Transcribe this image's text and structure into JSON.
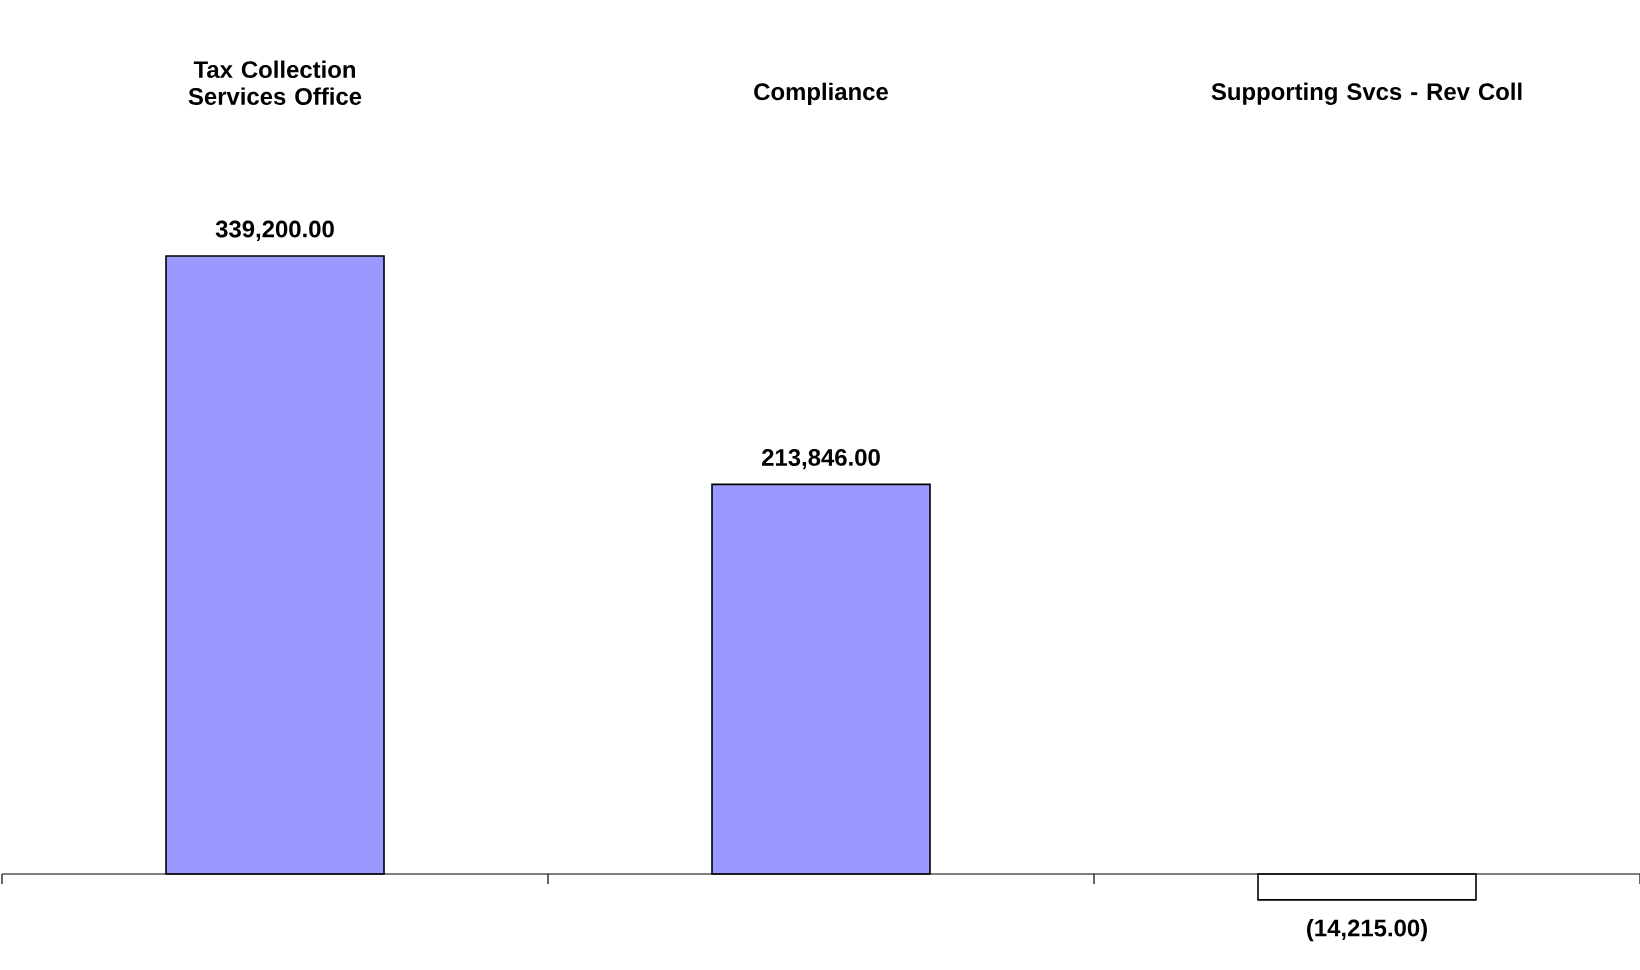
{
  "chart_data": {
    "type": "bar",
    "categories": [
      "Tax Collection Services Office",
      "Compliance",
      "Supporting Svcs - Rev Coll"
    ],
    "values": [
      339200,
      213846,
      -14215
    ],
    "colors": [
      "#9999ff",
      "#9999ff",
      "#ffffff"
    ],
    "value_labels": [
      "339,200.00",
      "213,846.00",
      "(14,215.00)"
    ]
  }
}
